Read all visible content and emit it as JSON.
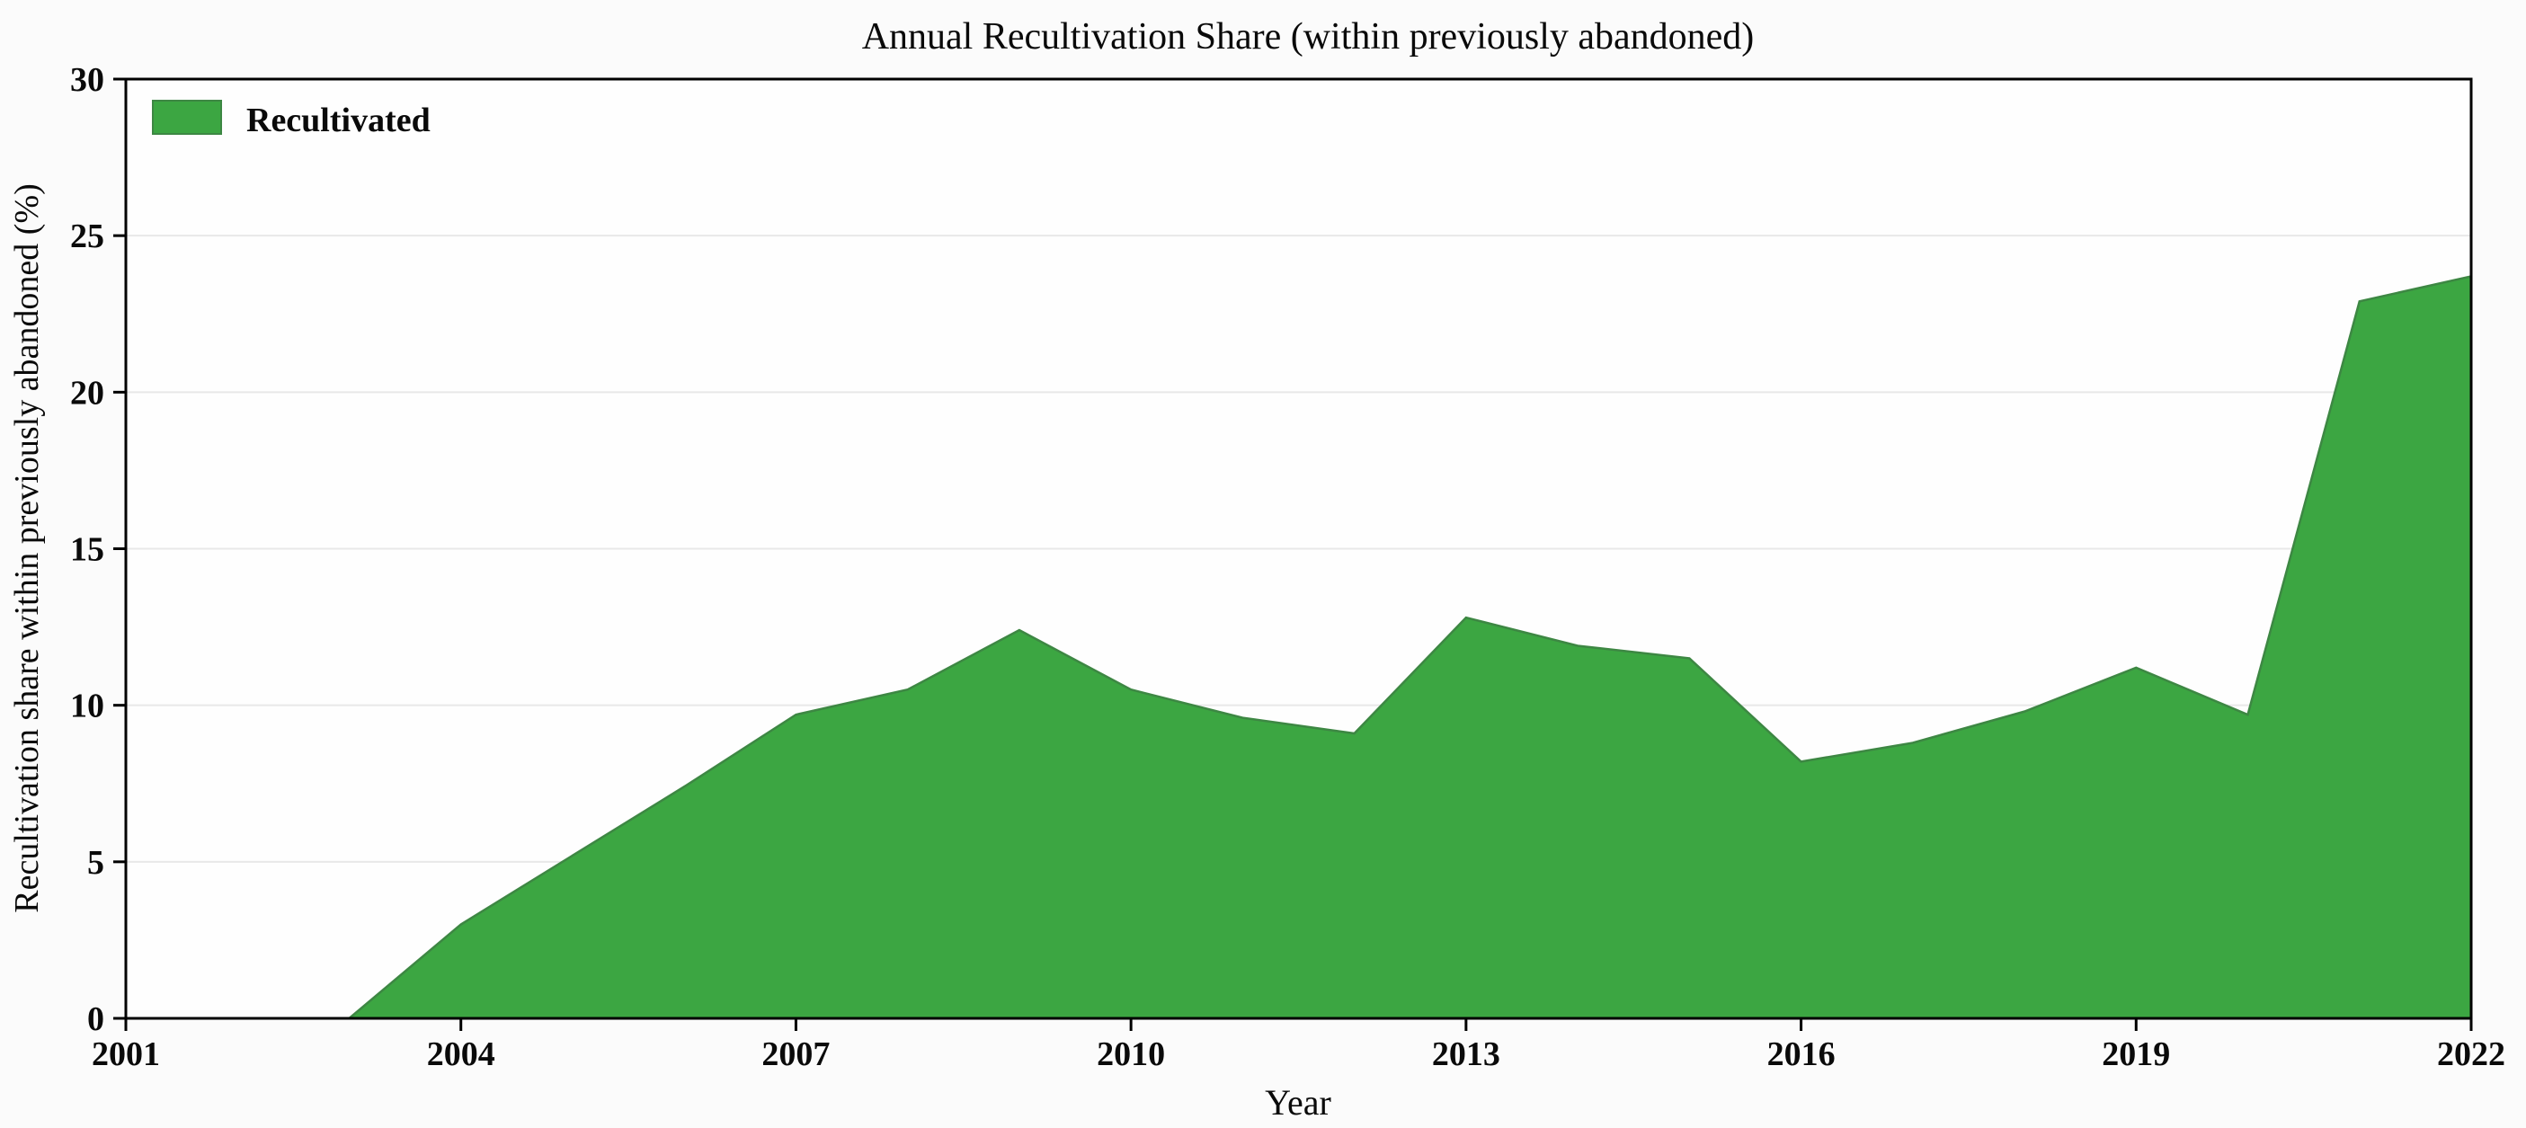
{
  "chart_data": {
    "type": "area",
    "title": "Annual Recultivation Share (within previously abandoned)",
    "xlabel": "Year",
    "ylabel": "Recultivation share within previously abandoned (%)",
    "legend": {
      "position": "upper-left",
      "entries": [
        {
          "label": "Recultivated",
          "color": "#3CA642"
        }
      ]
    },
    "x": [
      2001,
      2002,
      2003,
      2004,
      2005,
      2006,
      2007,
      2008,
      2009,
      2010,
      2011,
      2012,
      2013,
      2014,
      2015,
      2016,
      2017,
      2018,
      2019,
      2020,
      2021,
      2022
    ],
    "series": [
      {
        "name": "Recultivated",
        "values": [
          0,
          0,
          0,
          3.0,
          5.2,
          7.4,
          9.7,
          10.5,
          12.4,
          10.5,
          9.6,
          9.1,
          12.8,
          11.9,
          11.5,
          8.2,
          8.8,
          9.8,
          11.2,
          9.7,
          22.9,
          23.7
        ]
      }
    ],
    "xlim": [
      2001,
      2022
    ],
    "ylim": [
      0,
      30
    ],
    "xticks": [
      2001,
      2004,
      2007,
      2010,
      2013,
      2016,
      2019,
      2022
    ],
    "yticks": [
      0,
      5,
      10,
      15,
      20,
      25,
      30
    ],
    "grid": "horizontal",
    "colors": {
      "fill": "#3CA642",
      "edge": "#3D8743",
      "gridline": "#e8e8e8",
      "axis": "#000000",
      "plot_background": "#fefefe"
    }
  }
}
